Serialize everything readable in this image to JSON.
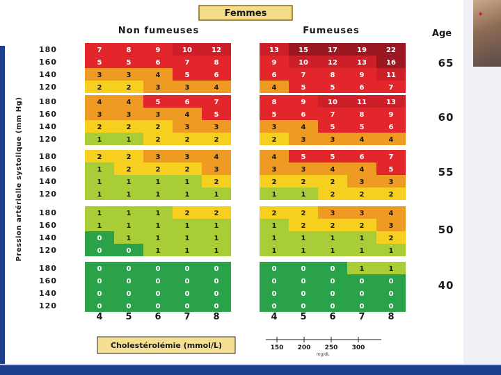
{
  "chart_data": {
    "type": "heatmap",
    "title": "Femmes",
    "groups": [
      "Non fumeuses",
      "Fumeuses"
    ],
    "age_header": "Age",
    "ages": [
      "65",
      "60",
      "55",
      "50",
      "40"
    ],
    "bp_levels": [
      "180",
      "160",
      "140",
      "120"
    ],
    "ylabel": "Pression artérielle systolique (mm Hg)",
    "cholesterol_mmol": [
      "4",
      "5",
      "6",
      "7",
      "8"
    ],
    "xlabel": "Cholestérolémie (mmol/L)",
    "cholesterol_mgdl": [
      "150",
      "200",
      "250",
      "300"
    ],
    "cholesterol_mgdl_unit": "mg/dL",
    "values": {
      "non_fumeuses": [
        [
          [
            7,
            8,
            9,
            10,
            12
          ],
          [
            5,
            5,
            6,
            7,
            8
          ],
          [
            3,
            3,
            4,
            5,
            6
          ],
          [
            2,
            2,
            3,
            3,
            4
          ]
        ],
        [
          [
            4,
            4,
            5,
            6,
            7
          ],
          [
            3,
            3,
            3,
            4,
            5
          ],
          [
            2,
            2,
            2,
            3,
            3
          ],
          [
            1,
            1,
            2,
            2,
            2
          ]
        ],
        [
          [
            2,
            2,
            3,
            3,
            4
          ],
          [
            1,
            2,
            2,
            2,
            3
          ],
          [
            1,
            1,
            1,
            1,
            2
          ],
          [
            1,
            1,
            1,
            1,
            1
          ]
        ],
        [
          [
            1,
            1,
            1,
            2,
            2
          ],
          [
            1,
            1,
            1,
            1,
            1
          ],
          [
            0,
            1,
            1,
            1,
            1
          ],
          [
            0,
            0,
            1,
            1,
            1
          ]
        ],
        [
          [
            0,
            0,
            0,
            0,
            0
          ],
          [
            0,
            0,
            0,
            0,
            0
          ],
          [
            0,
            0,
            0,
            0,
            0
          ],
          [
            0,
            0,
            0,
            0,
            0
          ]
        ]
      ],
      "fumeuses": [
        [
          [
            13,
            15,
            17,
            19,
            22
          ],
          [
            9,
            10,
            12,
            13,
            16
          ],
          [
            6,
            7,
            8,
            9,
            11
          ],
          [
            4,
            5,
            5,
            6,
            7
          ]
        ],
        [
          [
            8,
            9,
            10,
            11,
            13
          ],
          [
            5,
            6,
            7,
            8,
            9
          ],
          [
            3,
            4,
            5,
            5,
            6
          ],
          [
            2,
            3,
            3,
            4,
            4
          ]
        ],
        [
          [
            4,
            5,
            5,
            6,
            7
          ],
          [
            3,
            3,
            4,
            4,
            5
          ],
          [
            2,
            2,
            2,
            3,
            3
          ],
          [
            1,
            1,
            2,
            2,
            2
          ]
        ],
        [
          [
            2,
            2,
            3,
            3,
            4
          ],
          [
            1,
            2,
            2,
            2,
            3
          ],
          [
            1,
            1,
            1,
            1,
            2
          ],
          [
            1,
            1,
            1,
            1,
            1
          ]
        ],
        [
          [
            0,
            0,
            0,
            1,
            1
          ],
          [
            0,
            0,
            0,
            0,
            0
          ],
          [
            0,
            0,
            0,
            0,
            0
          ],
          [
            0,
            0,
            0,
            0,
            0
          ]
        ]
      ]
    },
    "risk_colors": {
      "r0": "#2aa24a",
      "r1": "#a9cd37",
      "r2": "#f7cf1e",
      "r3_4": "#ef9a23",
      "r5_9": "#e2262b",
      "r10_14": "#cc1f2a",
      "r15_plus": "#9b1822"
    }
  }
}
